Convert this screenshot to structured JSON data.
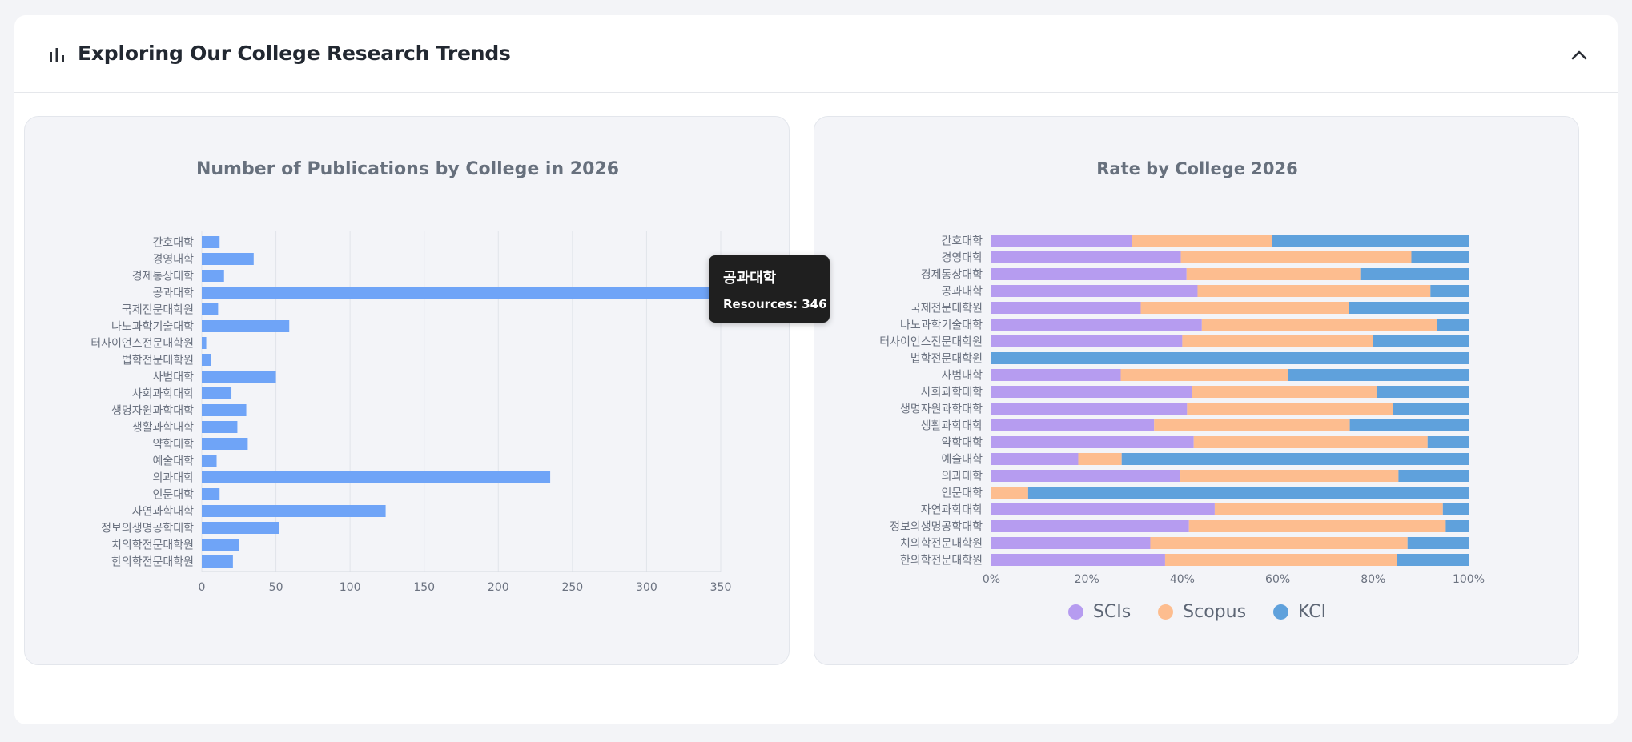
{
  "header": {
    "title": "Exploring Our College Research Trends",
    "icon": "bar-chart-icon",
    "collapse_icon": "chevron-up-icon"
  },
  "colors": {
    "bar_blue": "#6fa4f7",
    "scis": "#b69cf0",
    "scopus": "#fdbd8f",
    "kci": "#5fa1dc",
    "title_text": "#67707d",
    "axis_text": "#6b7280",
    "grid": "#e1e4ea",
    "tooltip_bg": "#1f1f1f"
  },
  "tooltip": {
    "title": "공과대학",
    "body": "Resources: 346"
  },
  "chart_data": [
    {
      "type": "bar",
      "orientation": "horizontal",
      "title": "Number of Publications by College in 2026",
      "categories": [
        "간호대학",
        "경영대학",
        "경제통상대학",
        "공과대학",
        "국제전문대학원",
        "나노과학기술대학",
        "터사이언스전문대학원",
        "법학전문대학원",
        "사범대학",
        "사회과학대학",
        "생명자원과학대학",
        "생활과학대학",
        "약학대학",
        "예술대학",
        "의과대학",
        "인문대학",
        "자연과학대학",
        "정보의생명공학대학",
        "치의학전문대학원",
        "한의학전문대학원"
      ],
      "series": [
        {
          "name": "Resources",
          "values": [
            12,
            35,
            15,
            346,
            11,
            59,
            3,
            6,
            50,
            20,
            30,
            24,
            31,
            10,
            235,
            12,
            124,
            52,
            25,
            21
          ]
        }
      ],
      "xlim": [
        0,
        350
      ],
      "xticks": [
        "0",
        "50",
        "100",
        "150",
        "200",
        "250",
        "300",
        "350"
      ],
      "grid": true
    },
    {
      "type": "bar",
      "orientation": "horizontal",
      "stacked": "percent",
      "title": "Rate by College 2026",
      "categories": [
        "간호대학",
        "경영대학",
        "경제통상대학",
        "공과대학",
        "국제전문대학원",
        "나노과학기술대학",
        "터사이언스전문대학원",
        "법학전문대학원",
        "사범대학",
        "사회과학대학",
        "생명자원과학대학",
        "생활과학대학",
        "약학대학",
        "예술대학",
        "의과대학",
        "인문대학",
        "자연과학대학",
        "정보의생명공학대학",
        "치의학전문대학원",
        "한의학전문대학원"
      ],
      "series": [
        {
          "name": "SCIs",
          "values": [
            29.4,
            39.7,
            40.9,
            43.2,
            31.3,
            44.1,
            40.0,
            0,
            27.1,
            42.0,
            41.0,
            34.1,
            42.4,
            18.2,
            39.6,
            0,
            46.8,
            41.4,
            33.3,
            36.4
          ]
        },
        {
          "name": "Scopus",
          "values": [
            29.4,
            48.3,
            36.4,
            48.8,
            43.7,
            49.2,
            40.0,
            0,
            35.0,
            38.7,
            43.1,
            41.0,
            49.0,
            9.1,
            45.7,
            7.7,
            47.8,
            53.8,
            53.9,
            48.5
          ]
        },
        {
          "name": "KCI",
          "values": [
            41.2,
            12.0,
            22.7,
            8.0,
            25.0,
            6.7,
            20.0,
            100,
            37.9,
            19.3,
            15.9,
            24.9,
            8.6,
            72.7,
            14.7,
            92.3,
            5.4,
            4.8,
            12.8,
            15.1
          ]
        }
      ],
      "xlim": [
        0,
        100
      ],
      "xticks": [
        "0%",
        "20%",
        "40%",
        "60%",
        "80%",
        "100%"
      ],
      "legend": "bottom"
    }
  ]
}
